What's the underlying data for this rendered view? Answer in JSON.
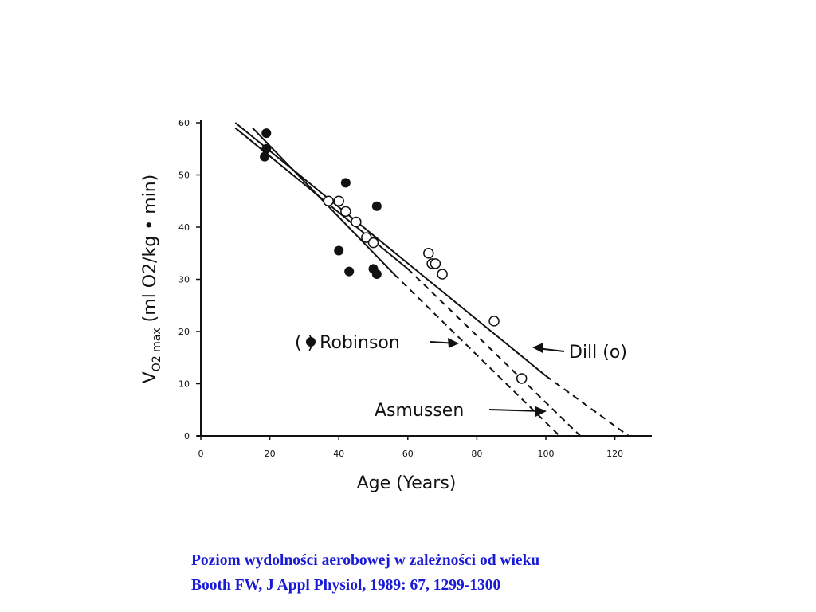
{
  "chart_data": {
    "type": "scatter",
    "xlabel": "Age (Years)",
    "ylabel_prefix": "V",
    "ylabel_sub": "O2 max",
    "ylabel_rest": " (ml O2/kg • min)",
    "xlim": [
      0,
      130
    ],
    "ylim": [
      0,
      60
    ],
    "x_ticks": [
      "0",
      "20",
      "40",
      "60",
      "80",
      "100",
      "120"
    ],
    "y_ticks": [
      "0",
      "10",
      "20",
      "30",
      "40",
      "50",
      "60"
    ],
    "series": [
      {
        "name": "Robinson",
        "marker": "filled",
        "points": [
          {
            "x": 19,
            "y": 58
          },
          {
            "x": 19,
            "y": 55
          },
          {
            "x": 18.5,
            "y": 53.5
          },
          {
            "x": 42,
            "y": 48.5
          },
          {
            "x": 51,
            "y": 44
          },
          {
            "x": 40,
            "y": 35.5
          },
          {
            "x": 43,
            "y": 31.5
          },
          {
            "x": 50,
            "y": 32
          },
          {
            "x": 51,
            "y": 31
          }
        ]
      },
      {
        "name": "Dill",
        "marker": "open",
        "points": [
          {
            "x": 37,
            "y": 45
          },
          {
            "x": 40,
            "y": 45
          },
          {
            "x": 42,
            "y": 43
          },
          {
            "x": 45,
            "y": 41
          },
          {
            "x": 48,
            "y": 38
          },
          {
            "x": 50,
            "y": 37
          },
          {
            "x": 66,
            "y": 35
          },
          {
            "x": 67,
            "y": 33
          },
          {
            "x": 68,
            "y": 33
          },
          {
            "x": 70,
            "y": 31
          },
          {
            "x": 85,
            "y": 22
          },
          {
            "x": 93,
            "y": 11
          }
        ]
      }
    ],
    "regression_lines": [
      {
        "name": "Dill",
        "solid": [
          [
            10,
            60
          ],
          [
            100,
            11.5
          ]
        ],
        "dashed": [
          [
            100,
            11.5
          ],
          [
            124,
            0
          ]
        ]
      },
      {
        "name": "Robinson",
        "solid": [
          [
            10,
            59
          ],
          [
            60,
            32
          ]
        ],
        "dashed": [
          [
            60,
            32
          ],
          [
            110,
            0
          ]
        ]
      },
      {
        "name": "Asmussen",
        "solid": [
          [
            15,
            59
          ],
          [
            56,
            31
          ]
        ],
        "dashed": [
          [
            56,
            31
          ],
          [
            104,
            0
          ]
        ]
      }
    ],
    "annotations": [
      {
        "id": "robinson",
        "prefix": "(",
        "suffix": ") Robinson"
      },
      {
        "id": "dill",
        "text": "Dill (o)"
      },
      {
        "id": "asmussen",
        "text": "Asmussen"
      }
    ]
  },
  "caption": {
    "line1": "Poziom wydolności aerobowej w zależności od wieku",
    "line2": "Booth FW, J Appl Physiol, 1989: 67, 1299-1300"
  }
}
